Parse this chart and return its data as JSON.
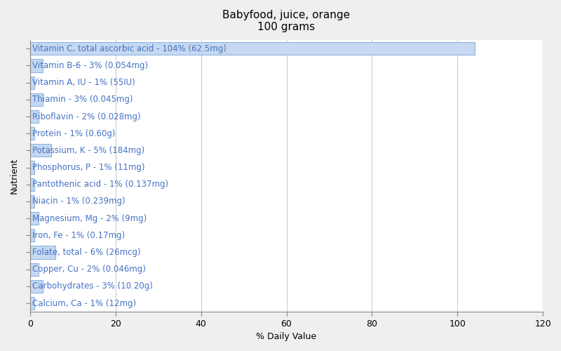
{
  "title": "Babyfood, juice, orange\n100 grams",
  "xlabel": "% Daily Value",
  "ylabel": "Nutrient",
  "nutrients": [
    "Calcium, Ca - 1% (12mg)",
    "Carbohydrates - 3% (10.20g)",
    "Copper, Cu - 2% (0.046mg)",
    "Folate, total - 6% (26mcg)",
    "Iron, Fe - 1% (0.17mg)",
    "Magnesium, Mg - 2% (9mg)",
    "Niacin - 1% (0.239mg)",
    "Pantothenic acid - 1% (0.137mg)",
    "Phosphorus, P - 1% (11mg)",
    "Potassium, K - 5% (184mg)",
    "Protein - 1% (0.60g)",
    "Riboflavin - 2% (0.028mg)",
    "Thiamin - 3% (0.045mg)",
    "Vitamin A, IU - 1% (55IU)",
    "Vitamin B-6 - 3% (0.054mg)",
    "Vitamin C, total ascorbic acid - 104% (62.5mg)"
  ],
  "values": [
    1,
    3,
    2,
    6,
    1,
    2,
    1,
    1,
    1,
    5,
    1,
    2,
    3,
    1,
    3,
    104
  ],
  "bar_color": "#c6d9f1",
  "bar_edge_color": "#8eb4e3",
  "text_color": "#4472c4",
  "background_color": "#efefef",
  "plot_bg_color": "#ffffff",
  "xlim": [
    0,
    120
  ],
  "xticks": [
    0,
    20,
    40,
    60,
    80,
    100,
    120
  ],
  "title_fontsize": 11,
  "label_fontsize": 8.5,
  "tick_fontsize": 9,
  "ylabel_fontsize": 9,
  "xlabel_fontsize": 9
}
